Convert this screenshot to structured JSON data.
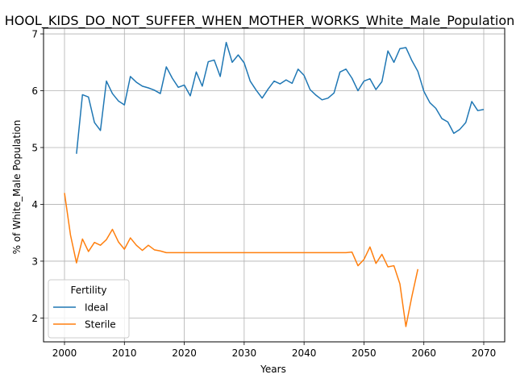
{
  "chart_data": {
    "type": "line",
    "title": "HOOL_KIDS_DO_NOT_SUFFER_WHEN_MOTHER_WORKS_White_Male_Population",
    "xlabel": "Years",
    "ylabel": "% of White_Male Population",
    "xlim": [
      1996.5,
      2073.5
    ],
    "ylim": [
      1.58,
      7.1
    ],
    "xticks": [
      2000,
      2010,
      2020,
      2030,
      2040,
      2050,
      2060,
      2070
    ],
    "yticks": [
      2,
      3,
      4,
      5,
      6,
      7
    ],
    "grid": true,
    "legend": {
      "title": "Fertility",
      "position": "lower-left"
    },
    "series": [
      {
        "name": "Ideal",
        "color": "#1f77b4",
        "x": [
          2002,
          2003,
          2004,
          2005,
          2006,
          2007,
          2008,
          2009,
          2010,
          2011,
          2012,
          2013,
          2014,
          2015,
          2016,
          2017,
          2018,
          2019,
          2020,
          2021,
          2022,
          2023,
          2024,
          2025,
          2026,
          2027,
          2028,
          2029,
          2030,
          2031,
          2032,
          2033,
          2034,
          2035,
          2036,
          2037,
          2038,
          2039,
          2040,
          2041,
          2042,
          2043,
          2044,
          2045,
          2046,
          2047,
          2048,
          2049,
          2050,
          2051,
          2052,
          2053,
          2054,
          2055,
          2056,
          2057,
          2058,
          2059,
          2060,
          2061,
          2062,
          2063,
          2064,
          2065,
          2066,
          2067,
          2068,
          2069,
          2070
        ],
        "values": [
          4.89,
          5.93,
          5.89,
          5.44,
          5.3,
          6.17,
          5.95,
          5.82,
          5.75,
          6.25,
          6.15,
          6.08,
          6.05,
          6.01,
          5.95,
          6.42,
          6.22,
          6.06,
          6.1,
          5.91,
          6.33,
          6.08,
          6.51,
          6.54,
          6.25,
          6.85,
          6.5,
          6.63,
          6.49,
          6.17,
          6.01,
          5.87,
          6.03,
          6.17,
          6.12,
          6.19,
          6.13,
          6.38,
          6.27,
          6.02,
          5.92,
          5.84,
          5.87,
          5.96,
          6.33,
          6.38,
          6.22,
          6.0,
          6.17,
          6.21,
          6.02,
          6.16,
          6.7,
          6.5,
          6.74,
          6.76,
          6.53,
          6.34,
          5.99,
          5.79,
          5.69,
          5.51,
          5.45,
          5.25,
          5.32,
          5.44,
          5.81,
          5.65,
          5.67
        ]
      },
      {
        "name": "Sterile",
        "color": "#ff7f0e",
        "x": [
          2000,
          2001,
          2002,
          2003,
          2004,
          2005,
          2006,
          2007,
          2008,
          2009,
          2010,
          2011,
          2012,
          2013,
          2014,
          2015,
          2016,
          2017,
          2018,
          2019,
          2020,
          2021,
          2022,
          2023,
          2024,
          2025,
          2026,
          2027,
          2028,
          2029,
          2030,
          2031,
          2032,
          2033,
          2034,
          2035,
          2036,
          2037,
          2038,
          2039,
          2040,
          2041,
          2042,
          2043,
          2044,
          2045,
          2046,
          2047,
          2048,
          2049,
          2050,
          2051,
          2052,
          2053,
          2054,
          2055,
          2056,
          2057,
          2058,
          2059
        ],
        "values": [
          4.2,
          3.46,
          2.97,
          3.39,
          3.17,
          3.33,
          3.28,
          3.38,
          3.56,
          3.34,
          3.21,
          3.41,
          3.28,
          3.19,
          3.28,
          3.2,
          3.18,
          3.15,
          3.15,
          3.15,
          3.15,
          3.15,
          3.15,
          3.15,
          3.15,
          3.15,
          3.15,
          3.15,
          3.15,
          3.15,
          3.15,
          3.15,
          3.15,
          3.15,
          3.15,
          3.15,
          3.15,
          3.15,
          3.15,
          3.15,
          3.15,
          3.15,
          3.15,
          3.15,
          3.15,
          3.15,
          3.15,
          3.15,
          3.16,
          2.92,
          3.03,
          3.25,
          2.96,
          3.12,
          2.9,
          2.92,
          2.6,
          1.85,
          2.38,
          2.86
        ]
      }
    ]
  }
}
